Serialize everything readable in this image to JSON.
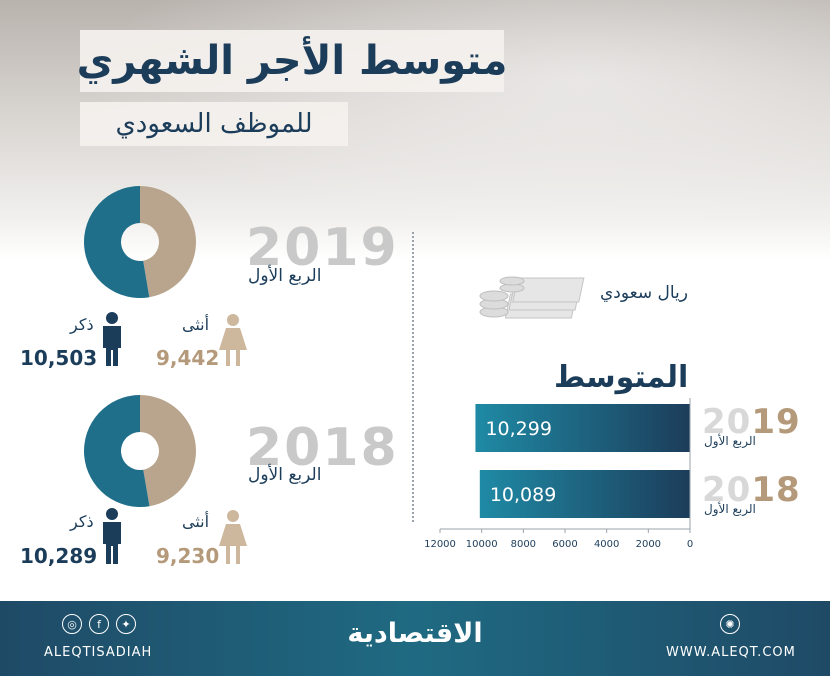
{
  "header": {
    "title": "متوسط الأجر الشهري",
    "subtitle": "للموظف السعودي"
  },
  "gender_panels": [
    {
      "year": "2019",
      "quarter": "الربع الأول",
      "female_label": "أنثى",
      "male_label": "ذكر",
      "female_value": "9,442",
      "male_value": "10,503"
    },
    {
      "year": "2018",
      "quarter": "الربع الأول",
      "female_label": "أنثى",
      "male_label": "ذكر",
      "female_value": "9,230",
      "male_value": "10,289"
    }
  ],
  "average_panel": {
    "currency_label": "ريال سعودي",
    "title": "المتوسط",
    "currency_icon": "money-stack-coins-icon"
  },
  "chart_data": [
    {
      "type": "pie",
      "title": "",
      "labels": [
        "أنثى",
        "ذكر"
      ],
      "values": [
        9442,
        10503
      ],
      "colors": [
        "#b9a58d",
        "#1f6f8b"
      ]
    },
    {
      "type": "pie",
      "title": "",
      "labels": [
        "أنثى",
        "ذكر"
      ],
      "values": [
        9230,
        10289
      ],
      "colors": [
        "#b9a58d",
        "#1f6f8b"
      ]
    },
    {
      "type": "bar",
      "orientation": "horizontal",
      "categories": [
        "2019",
        "2018"
      ],
      "category_prefix": [
        "20",
        "20"
      ],
      "category_suffix": [
        "19",
        "18"
      ],
      "category_sublabels": [
        "الربع الأول",
        "الربع الأول"
      ],
      "values": [
        10299,
        10089
      ],
      "value_labels": [
        "10,299",
        "10,089"
      ],
      "xlim": [
        0,
        12000
      ],
      "ticks": [
        12000,
        10000,
        8000,
        6000,
        4000,
        2000,
        0
      ],
      "direction": "right-to-left",
      "grid": false
    }
  ],
  "colors": {
    "navy": "#1c3d5a",
    "teal": "#1f6f8b",
    "tan": "#b49a7a",
    "footer": "#1f4a66"
  },
  "footer": {
    "brand": "الاقتصادية",
    "handle": "ALEQTISADIAH",
    "website": "WWW.ALEQT.COM",
    "social_icons": [
      "instagram-icon",
      "facebook-icon",
      "twitter-icon"
    ],
    "web_icon": "globe-icon"
  }
}
